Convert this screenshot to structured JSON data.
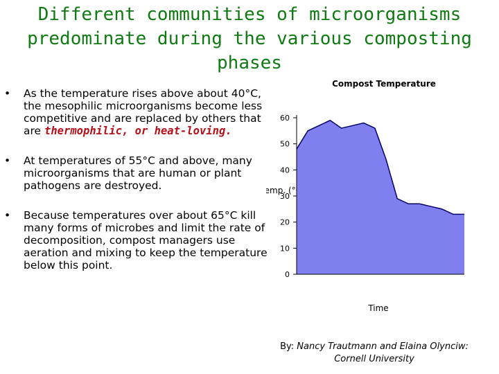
{
  "slide": {
    "title": "Different communities of microorganisms predominate during the various composting phases",
    "bullets": [
      {
        "marker": "•",
        "text": "As the temperature rises above about 40°C, the mesophilic microorganisms become less competitive and are replaced by others that are ",
        "emphasis": "thermophilic, or heat-loving",
        "after": "."
      },
      {
        "marker": "•",
        "text": "At temperatures of 55°C and above, many microorganisms that are human or plant pathogens are destroyed."
      },
      {
        "marker": "•",
        "text": "Because temperatures over about 65°C kill many forms of microbes and limit the rate of decomposition, compost managers use aeration and mixing to keep the temperature below this point."
      }
    ],
    "credit": {
      "prefix": "By: ",
      "names": "Nancy Trautmann and Elaina Olynciw:",
      "affiliation": "Cornell University"
    }
  },
  "chart_data": {
    "type": "area",
    "title": "Compost Temperature",
    "ylabel": "Temp. (°C)",
    "xlabel": "Time",
    "ylim": [
      0,
      60
    ],
    "yticks": [
      0,
      10,
      20,
      30,
      40,
      50,
      60
    ],
    "x": [
      0,
      1,
      2,
      3,
      4,
      5,
      6,
      7,
      8,
      9,
      10,
      11,
      12,
      13,
      14,
      15
    ],
    "values": [
      48,
      55,
      57,
      59,
      56,
      57,
      58,
      56,
      44,
      29,
      27,
      27,
      26,
      25,
      23,
      23
    ],
    "fill_color": "#7f7ff0",
    "line_color": "#000066",
    "grid": false
  }
}
